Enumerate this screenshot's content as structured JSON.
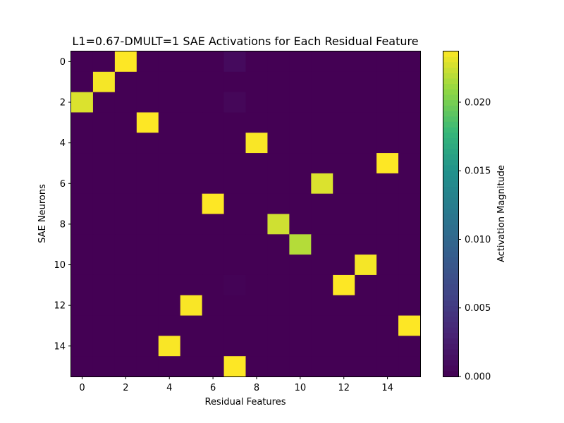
{
  "chart_data": {
    "type": "heatmap",
    "title": "L1=0.67-DMULT=1 SAE Activations for Each Residual Feature",
    "xlabel": "Residual Features",
    "ylabel": "SAE Neurons",
    "x_ticks": [
      0,
      2,
      4,
      6,
      8,
      10,
      12,
      14
    ],
    "y_ticks": [
      0,
      2,
      4,
      6,
      8,
      10,
      12,
      14
    ],
    "n_cols": 16,
    "n_rows": 16,
    "colormap": "viridis",
    "vmin": 0.0,
    "vmax": 0.0237,
    "colorbar": {
      "label": "Activation Magnitude",
      "ticks": [
        0.0,
        0.005,
        0.01,
        0.015,
        0.02
      ],
      "tick_labels": [
        "0.000",
        "0.005",
        "0.010",
        "0.015",
        "0.020"
      ]
    },
    "values": [
      [
        0,
        0,
        0.0237,
        0,
        0,
        0,
        0,
        0.0008,
        0,
        0,
        0,
        0,
        0,
        0,
        0,
        0
      ],
      [
        0,
        0.0235,
        0,
        0,
        0,
        0,
        0,
        0,
        0,
        0,
        0,
        0,
        0,
        0,
        0,
        0
      ],
      [
        0.0228,
        0,
        0,
        0,
        0,
        0,
        0,
        0.0005,
        0,
        0,
        0,
        0,
        0,
        0,
        0,
        0
      ],
      [
        0,
        0,
        0,
        0.0237,
        0,
        0,
        0,
        0,
        0,
        0,
        0,
        0,
        0,
        0,
        0,
        0
      ],
      [
        0,
        0,
        0,
        0,
        0,
        0,
        0,
        0,
        0.0236,
        0,
        0,
        0,
        0,
        0,
        0,
        0
      ],
      [
        0,
        0,
        0,
        0,
        0,
        0,
        0,
        0,
        0,
        0,
        0,
        0,
        0,
        0,
        0.0237,
        0
      ],
      [
        0,
        0,
        0,
        0,
        0,
        0,
        0,
        0,
        0,
        0,
        0,
        0.0228,
        0,
        0,
        0,
        0
      ],
      [
        0,
        0,
        0,
        0,
        0,
        0,
        0.0237,
        0,
        0,
        0,
        0,
        0,
        0,
        0,
        0,
        0
      ],
      [
        0,
        0,
        0,
        0,
        0,
        0,
        0,
        0,
        0,
        0.0225,
        0,
        0,
        0,
        0,
        0,
        0
      ],
      [
        0,
        0,
        0,
        0,
        0,
        0,
        0,
        0,
        0,
        0,
        0.0218,
        0,
        0,
        0,
        0,
        0
      ],
      [
        0,
        0,
        0,
        0,
        0,
        0,
        0,
        0,
        0,
        0,
        0,
        0,
        0,
        0.0235,
        0,
        0
      ],
      [
        0,
        0,
        0,
        0,
        0,
        0,
        0,
        0.0002,
        0,
        0,
        0,
        0,
        0.0237,
        0,
        0,
        0
      ],
      [
        0,
        0,
        0,
        0,
        0,
        0.0236,
        0,
        0,
        0,
        0,
        0,
        0,
        0,
        0,
        0,
        0
      ],
      [
        0,
        0,
        0,
        0,
        0,
        0,
        0,
        0,
        0,
        0,
        0,
        0,
        0,
        0,
        0,
        0.0237
      ],
      [
        0,
        0,
        0,
        0,
        0.0236,
        0,
        0,
        0,
        0,
        0,
        0,
        0,
        0,
        0,
        0,
        0
      ],
      [
        0,
        0,
        0,
        0,
        0,
        0,
        0,
        0.0237,
        0,
        0,
        0,
        0,
        0,
        0,
        0,
        0
      ]
    ]
  }
}
